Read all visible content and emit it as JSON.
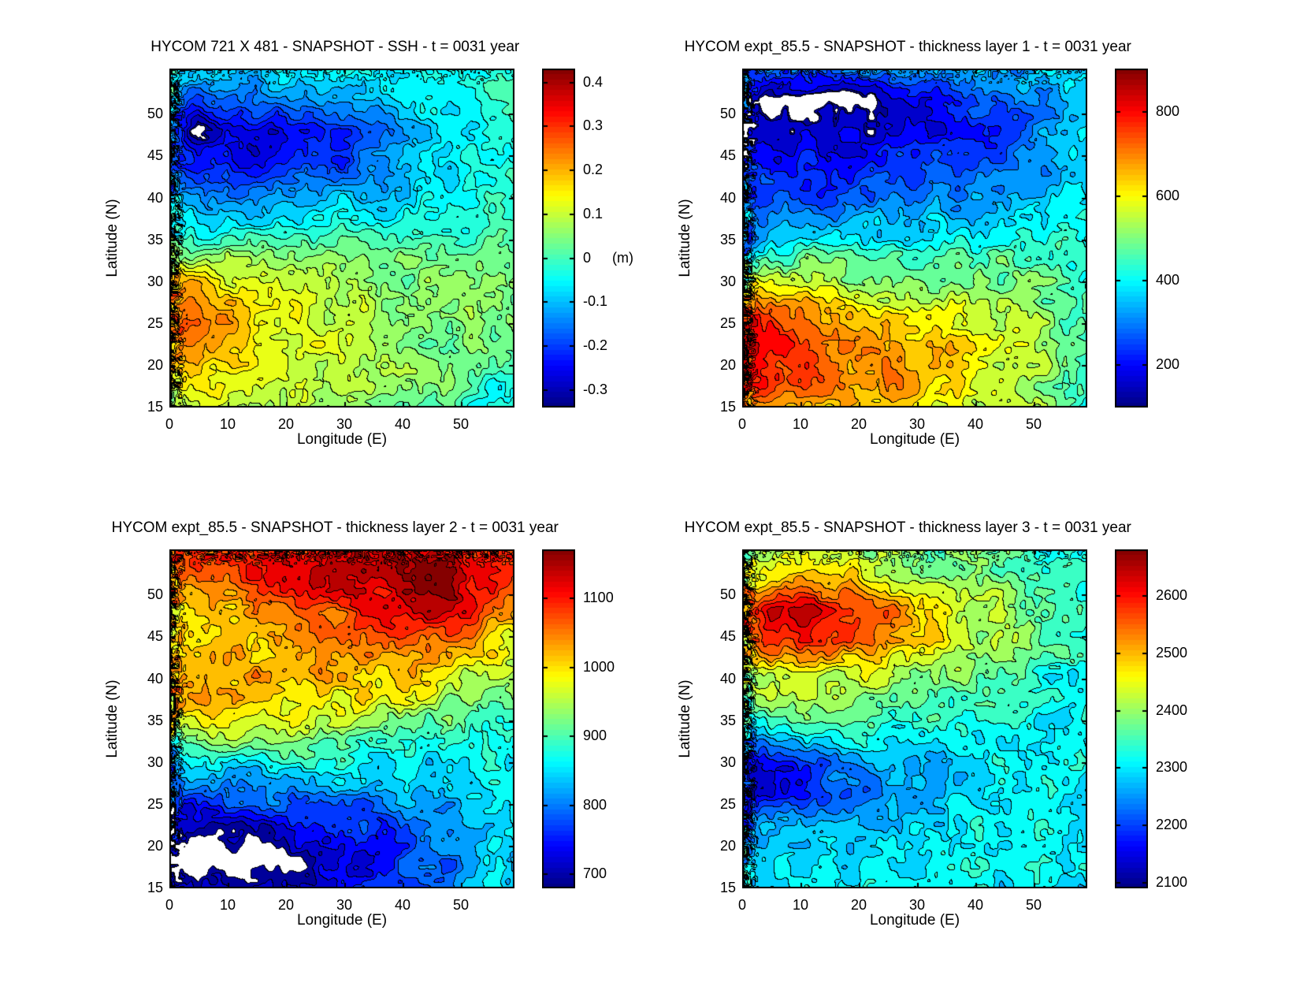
{
  "figure": {
    "background": "#ffffff",
    "text_color": "#000000",
    "colormap": "jet"
  },
  "chart_data": [
    {
      "type": "filled_contour",
      "title": "HYCOM 721 X 481 - SNAPSHOT - SSH - t = 0031 year",
      "xlabel": "Longitude (E)",
      "ylabel": "Latitude (N)",
      "xlim": [
        0,
        59
      ],
      "ylim": [
        15,
        55.4
      ],
      "xticks": [
        0,
        10,
        20,
        30,
        40,
        50
      ],
      "yticks": [
        15,
        20,
        25,
        30,
        35,
        40,
        45,
        50
      ],
      "colorbar": {
        "min": -0.34,
        "max": 0.43,
        "ticks": [
          0.4,
          0.3,
          0.2,
          0.1,
          0,
          -0.1,
          -0.2,
          -0.3
        ],
        "labels": [
          "0.4",
          "0.3",
          "0.2",
          "0.1",
          "0",
          "-0.1",
          "-0.2",
          "-0.3"
        ],
        "unit": "(m)",
        "unit_tick": 0
      },
      "contour_step": 0.03,
      "white_below": -0.32,
      "grid": {
        "lons": [
          0,
          4.9,
          9.8,
          14.8,
          19.7,
          24.6,
          29.5,
          34.4,
          39.3,
          44.3,
          49.2,
          54.1,
          59
        ],
        "lats": [
          55.4,
          51.7,
          48,
          44.4,
          40.7,
          37.1,
          33.4,
          29.8,
          26.1,
          22.4,
          18.8,
          15.1
        ],
        "values": [
          [
            -0.06,
            -0.08,
            -0.07,
            -0.09,
            -0.06,
            -0.07,
            -0.05,
            -0.06,
            -0.05,
            -0.04,
            -0.02,
            -0.01,
            0.0
          ],
          [
            -0.12,
            -0.18,
            -0.14,
            -0.16,
            -0.12,
            -0.14,
            -0.1,
            -0.09,
            -0.08,
            -0.06,
            -0.05,
            -0.03,
            -0.01
          ],
          [
            -0.15,
            -0.35,
            -0.26,
            -0.28,
            -0.24,
            -0.26,
            -0.2,
            -0.16,
            -0.12,
            -0.08,
            -0.06,
            -0.04,
            -0.02
          ],
          [
            -0.18,
            -0.26,
            -0.22,
            -0.28,
            -0.25,
            -0.2,
            -0.22,
            -0.16,
            -0.1,
            -0.08,
            -0.06,
            -0.04,
            -0.02
          ],
          [
            -0.12,
            -0.16,
            -0.14,
            -0.18,
            -0.16,
            -0.13,
            -0.11,
            -0.1,
            -0.08,
            -0.07,
            -0.05,
            -0.04,
            -0.02
          ],
          [
            -0.06,
            -0.08,
            -0.07,
            -0.08,
            -0.07,
            -0.06,
            -0.05,
            -0.05,
            -0.04,
            -0.03,
            -0.03,
            -0.02,
            -0.01
          ],
          [
            0.05,
            0.03,
            0.08,
            0.06,
            0.05,
            0.04,
            0.04,
            0.03,
            0.03,
            0.03,
            0.02,
            0.02,
            0.01
          ],
          [
            0.16,
            0.2,
            0.12,
            0.14,
            0.1,
            0.09,
            0.08,
            0.07,
            0.06,
            0.05,
            0.05,
            0.04,
            0.03
          ],
          [
            0.28,
            0.24,
            0.2,
            0.14,
            0.13,
            0.11,
            0.09,
            0.08,
            0.07,
            0.06,
            0.05,
            0.04,
            0.03
          ],
          [
            0.24,
            0.22,
            0.18,
            0.15,
            0.13,
            0.11,
            0.1,
            0.08,
            0.07,
            0.05,
            0.04,
            0.03,
            0.01
          ],
          [
            0.14,
            0.15,
            0.13,
            0.12,
            0.11,
            0.1,
            0.08,
            0.07,
            0.06,
            0.05,
            0.03,
            0.0,
            -0.03
          ],
          [
            0.1,
            0.11,
            0.1,
            0.09,
            0.08,
            0.07,
            0.06,
            0.05,
            0.04,
            0.02,
            0.0,
            -0.04,
            -0.06
          ]
        ]
      }
    },
    {
      "type": "filled_contour",
      "title": "HYCOM expt_85.5 - SNAPSHOT - thickness layer 1 - t = 0031 year",
      "xlabel": "Longitude (E)",
      "ylabel": "Latitude (N)",
      "xlim": [
        0,
        59
      ],
      "ylim": [
        15,
        55.4
      ],
      "xticks": [
        0,
        10,
        20,
        30,
        40,
        50
      ],
      "yticks": [
        15,
        20,
        25,
        30,
        35,
        40,
        45,
        50
      ],
      "colorbar": {
        "min": 100,
        "max": 900,
        "ticks": [
          800,
          600,
          400,
          200
        ],
        "labels": [
          "800",
          "600",
          "400",
          "200"
        ],
        "unit": null,
        "unit_tick": null
      },
      "contour_step": 40,
      "white_below": 130,
      "grid": {
        "lons": [
          0,
          4.9,
          9.8,
          14.8,
          19.7,
          24.6,
          29.5,
          34.4,
          39.3,
          44.3,
          49.2,
          54.1,
          59
        ],
        "lats": [
          55.4,
          51.7,
          48,
          44.4,
          40.7,
          37.1,
          33.4,
          29.8,
          26.1,
          22.4,
          18.8,
          15.1
        ],
        "values": [
          [
            320,
            300,
            290,
            300,
            310,
            300,
            320,
            330,
            340,
            350,
            360,
            370,
            380
          ],
          [
            220,
            110,
            100,
            105,
            115,
            160,
            180,
            200,
            220,
            260,
            300,
            340,
            370
          ],
          [
            190,
            150,
            140,
            150,
            160,
            170,
            180,
            190,
            210,
            240,
            280,
            320,
            360
          ],
          [
            240,
            210,
            200,
            210,
            215,
            220,
            230,
            240,
            255,
            270,
            300,
            330,
            365
          ],
          [
            290,
            270,
            260,
            265,
            270,
            280,
            290,
            300,
            315,
            330,
            350,
            365,
            380
          ],
          [
            340,
            330,
            325,
            330,
            340,
            350,
            360,
            370,
            385,
            395,
            405,
            410,
            415
          ],
          [
            250,
            420,
            470,
            450,
            445,
            440,
            440,
            445,
            455,
            465,
            470,
            460,
            430
          ],
          [
            600,
            560,
            545,
            530,
            520,
            510,
            505,
            500,
            500,
            500,
            495,
            480,
            440
          ],
          [
            780,
            730,
            700,
            670,
            650,
            630,
            610,
            590,
            575,
            555,
            530,
            500,
            450
          ],
          [
            830,
            800,
            770,
            730,
            710,
            690,
            665,
            635,
            605,
            575,
            545,
            505,
            455
          ],
          [
            790,
            780,
            750,
            720,
            700,
            680,
            655,
            630,
            600,
            570,
            540,
            500,
            450
          ],
          [
            650,
            690,
            680,
            665,
            650,
            635,
            615,
            590,
            565,
            540,
            515,
            480,
            440
          ]
        ]
      }
    },
    {
      "type": "filled_contour",
      "title": "HYCOM expt_85.5 - SNAPSHOT - thickness layer 2 - t = 0031 year",
      "xlabel": "Longitude (E)",
      "ylabel": "Latitude (N)",
      "xlim": [
        0,
        59
      ],
      "ylim": [
        15,
        55.4
      ],
      "xticks": [
        0,
        10,
        20,
        30,
        40,
        50
      ],
      "yticks": [
        15,
        20,
        25,
        30,
        35,
        40,
        45,
        50
      ],
      "colorbar": {
        "min": 680,
        "max": 1170,
        "ticks": [
          1100,
          1000,
          900,
          800,
          700
        ],
        "labels": [
          "1100",
          "1000",
          "900",
          "800",
          "700"
        ],
        "unit": null,
        "unit_tick": null
      },
      "contour_step": 25,
      "white_below": 685,
      "grid": {
        "lons": [
          0,
          4.9,
          9.8,
          14.8,
          19.7,
          24.6,
          29.5,
          34.4,
          39.3,
          44.3,
          49.2,
          54.1,
          59
        ],
        "lats": [
          55.4,
          51.7,
          48,
          44.4,
          40.7,
          37.1,
          33.4,
          29.8,
          26.1,
          22.4,
          18.8,
          15.1
        ],
        "values": [
          [
            1060,
            1080,
            1090,
            1100,
            1110,
            1120,
            1130,
            1120,
            1130,
            1140,
            1130,
            1120,
            1090
          ],
          [
            1050,
            1070,
            1080,
            1090,
            1100,
            1110,
            1120,
            1130,
            1145,
            1155,
            1145,
            1120,
            1080
          ],
          [
            1010,
            990,
            1010,
            1030,
            1040,
            1060,
            1080,
            1100,
            1120,
            1140,
            1130,
            1080,
            1040
          ],
          [
            1000,
            980,
            1000,
            1020,
            1030,
            1040,
            1050,
            1060,
            1070,
            1060,
            1040,
            1010,
            985
          ],
          [
            1020,
            1010,
            1020,
            1025,
            1030,
            1030,
            1030,
            1025,
            1015,
            1000,
            980,
            955,
            935
          ],
          [
            990,
            1000,
            1000,
            1000,
            995,
            990,
            985,
            975,
            960,
            945,
            925,
            905,
            895
          ],
          [
            930,
            945,
            950,
            950,
            948,
            940,
            932,
            920,
            908,
            896,
            885,
            878,
            875
          ],
          [
            855,
            862,
            865,
            866,
            866,
            865,
            863,
            860,
            858,
            856,
            856,
            862,
            872
          ],
          [
            775,
            785,
            792,
            796,
            800,
            803,
            806,
            810,
            816,
            824,
            836,
            852,
            868
          ],
          [
            710,
            705,
            712,
            720,
            728,
            738,
            748,
            760,
            775,
            792,
            812,
            838,
            860
          ],
          [
            665,
            655,
            660,
            668,
            678,
            695,
            715,
            738,
            760,
            783,
            806,
            835,
            858
          ],
          [
            730,
            712,
            700,
            695,
            700,
            712,
            726,
            744,
            764,
            786,
            808,
            834,
            856
          ]
        ]
      }
    },
    {
      "type": "filled_contour",
      "title": "HYCOM expt_85.5 - SNAPSHOT - thickness layer 3 - t = 0031 year",
      "xlabel": "Longitude (E)",
      "ylabel": "Latitude (N)",
      "xlim": [
        0,
        59
      ],
      "ylim": [
        15,
        55.4
      ],
      "xticks": [
        0,
        10,
        20,
        30,
        40,
        50
      ],
      "yticks": [
        15,
        20,
        25,
        30,
        35,
        40,
        45,
        50
      ],
      "colorbar": {
        "min": 2090,
        "max": 2680,
        "ticks": [
          2600,
          2500,
          2400,
          2300,
          2200,
          2100
        ],
        "labels": [
          "2600",
          "2500",
          "2400",
          "2300",
          "2200",
          "2100"
        ],
        "unit": null,
        "unit_tick": null
      },
      "contour_step": 30,
      "white_below": null,
      "grid": {
        "lons": [
          0,
          4.9,
          9.8,
          14.8,
          19.7,
          24.6,
          29.5,
          34.4,
          39.3,
          44.3,
          49.2,
          54.1,
          59
        ],
        "lats": [
          55.4,
          51.7,
          48,
          44.4,
          40.7,
          37.1,
          33.4,
          29.8,
          26.1,
          22.4,
          18.8,
          15.1
        ],
        "values": [
          [
            2380,
            2400,
            2410,
            2400,
            2410,
            2390,
            2380,
            2370,
            2360,
            2350,
            2340,
            2330,
            2325
          ],
          [
            2430,
            2480,
            2500,
            2490,
            2470,
            2450,
            2430,
            2420,
            2400,
            2380,
            2350,
            2335,
            2325
          ],
          [
            2520,
            2650,
            2640,
            2610,
            2580,
            2550,
            2520,
            2480,
            2440,
            2405,
            2370,
            2340,
            2325
          ],
          [
            2480,
            2590,
            2610,
            2580,
            2560,
            2535,
            2505,
            2470,
            2435,
            2405,
            2375,
            2345,
            2325
          ],
          [
            2400,
            2440,
            2455,
            2445,
            2435,
            2425,
            2410,
            2390,
            2370,
            2355,
            2340,
            2330,
            2322
          ],
          [
            2370,
            2395,
            2398,
            2390,
            2380,
            2370,
            2360,
            2350,
            2342,
            2336,
            2328,
            2322,
            2318
          ],
          [
            2240,
            2300,
            2320,
            2322,
            2320,
            2318,
            2316,
            2316,
            2316,
            2316,
            2314,
            2312,
            2310
          ],
          [
            2140,
            2170,
            2200,
            2230,
            2255,
            2270,
            2282,
            2292,
            2300,
            2306,
            2308,
            2308,
            2308
          ],
          [
            2120,
            2145,
            2175,
            2205,
            2235,
            2255,
            2272,
            2284,
            2294,
            2302,
            2306,
            2308,
            2308
          ],
          [
            2230,
            2250,
            2262,
            2274,
            2284,
            2290,
            2296,
            2300,
            2304,
            2308,
            2308,
            2308,
            2308
          ],
          [
            2295,
            2300,
            2296,
            2300,
            2298,
            2302,
            2300,
            2304,
            2306,
            2308,
            2310,
            2308,
            2308
          ],
          [
            2315,
            2308,
            2312,
            2306,
            2310,
            2306,
            2308,
            2308,
            2306,
            2310,
            2308,
            2306,
            2306
          ]
        ]
      }
    }
  ]
}
